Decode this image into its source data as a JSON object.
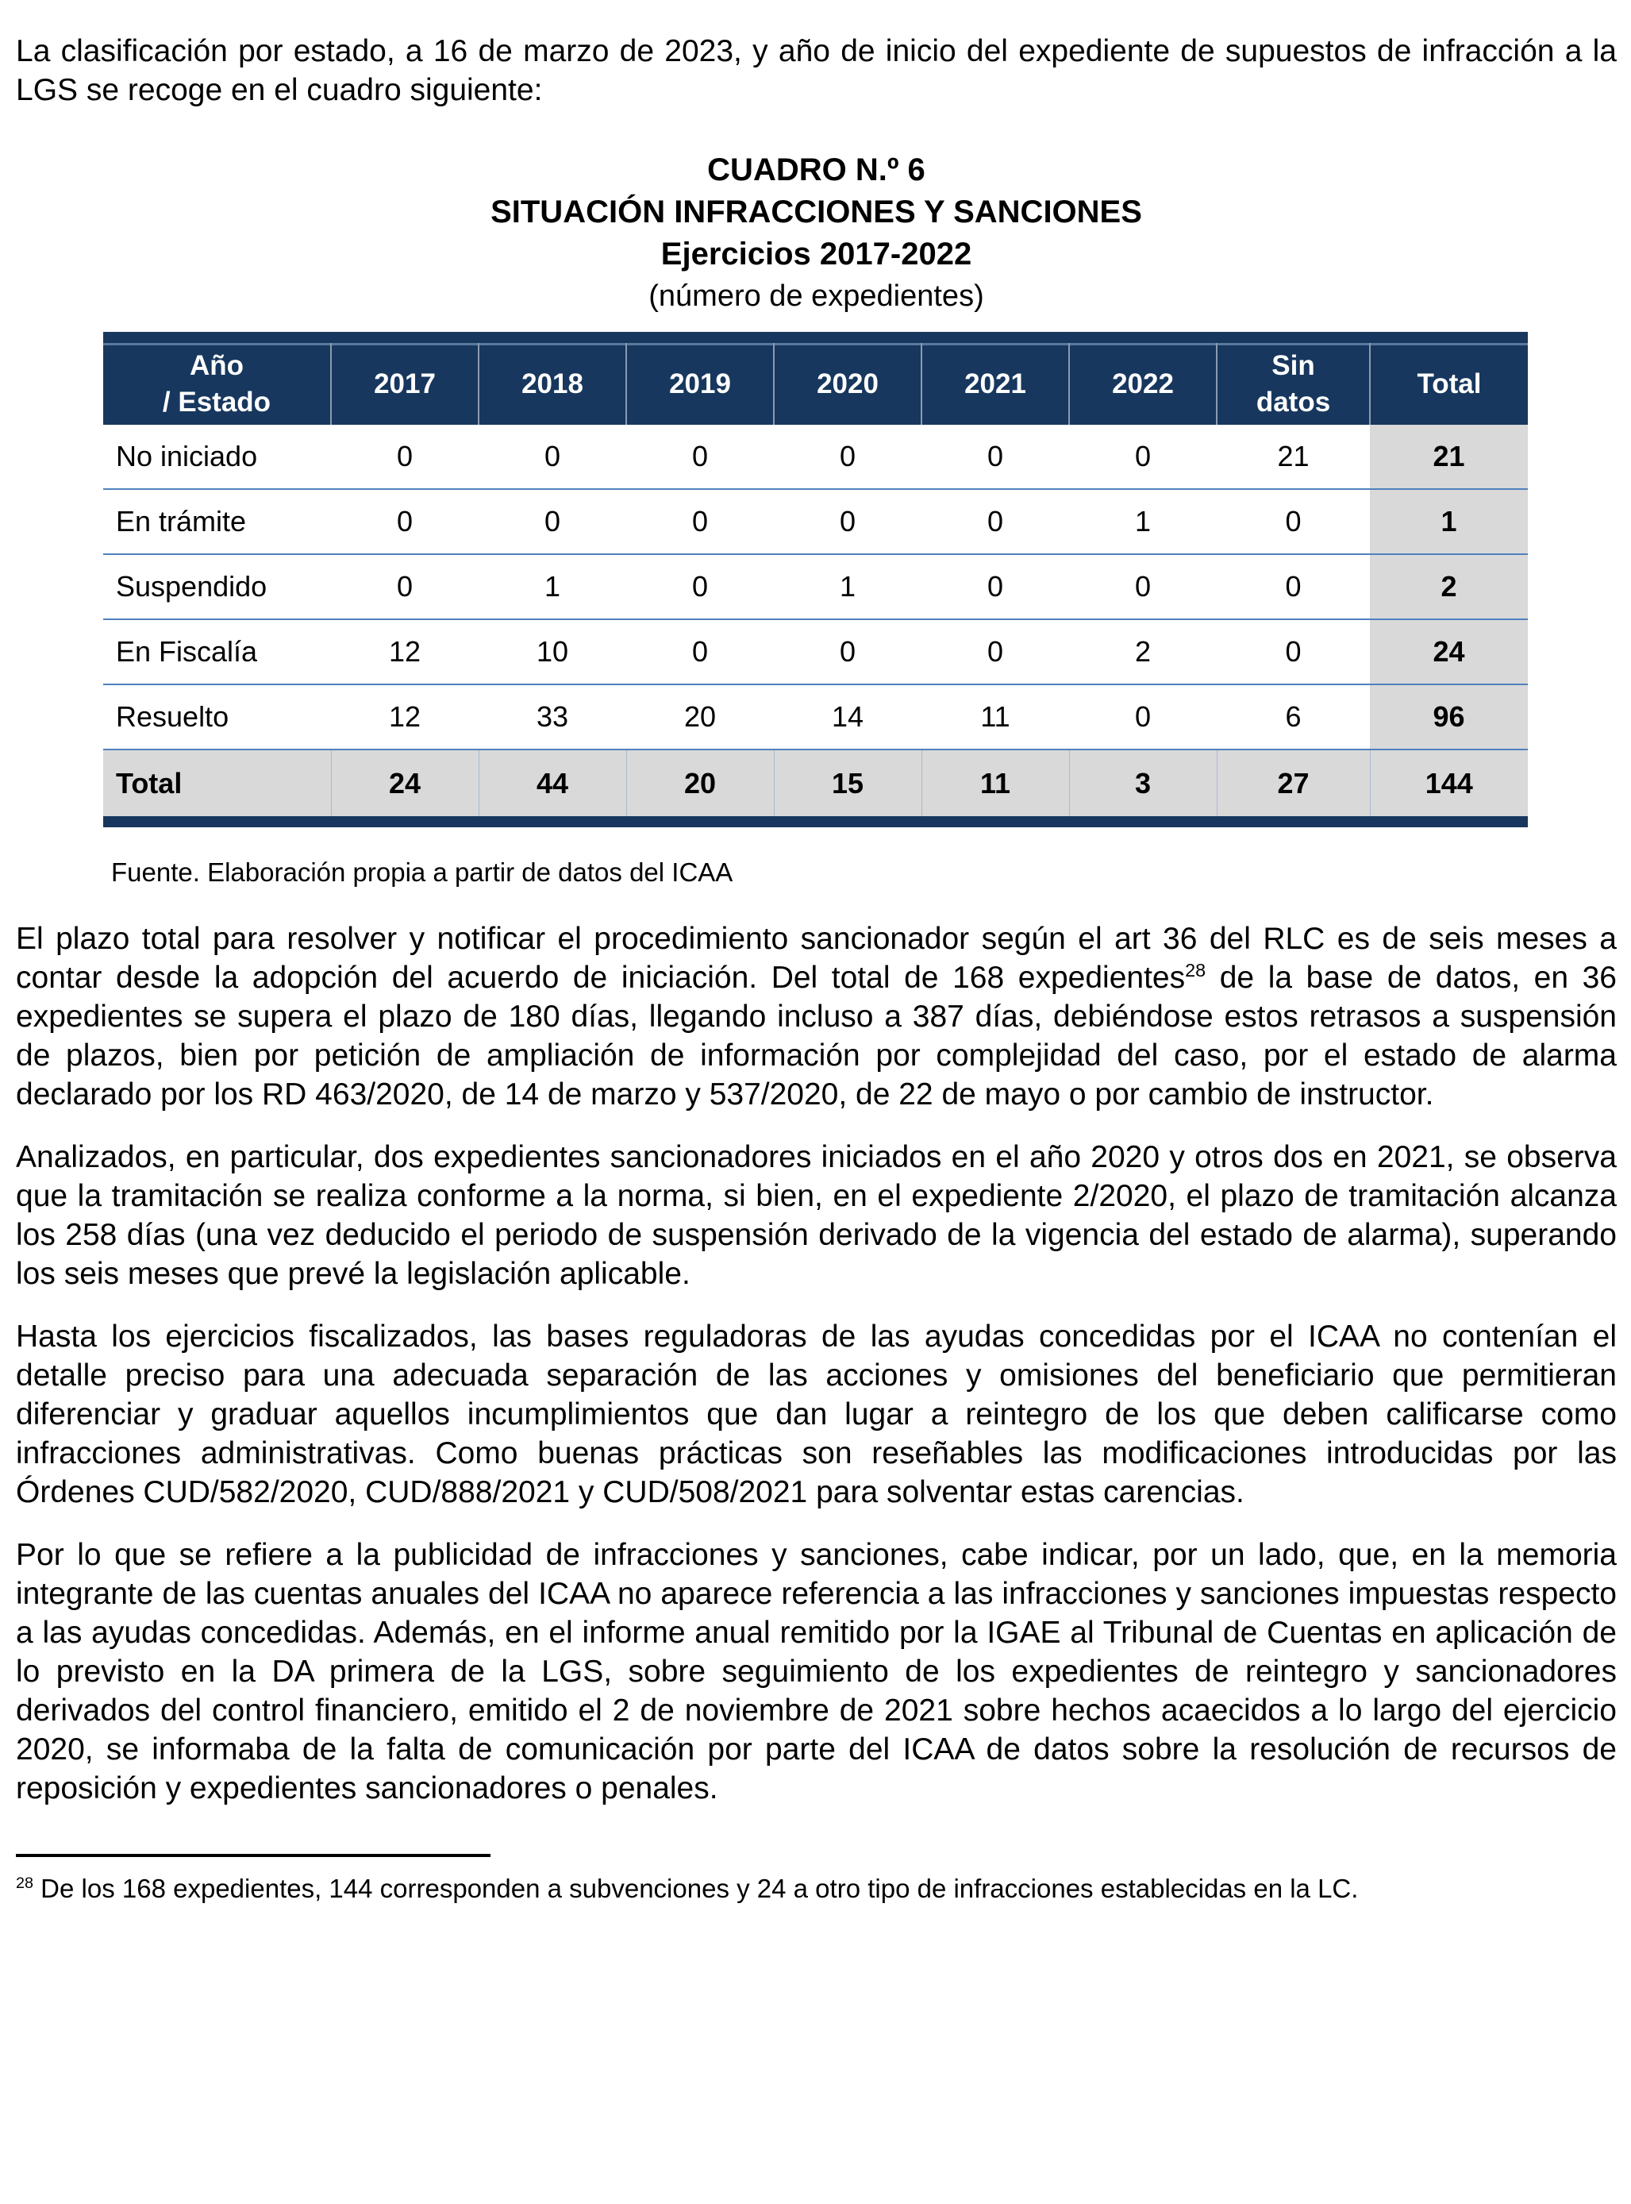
{
  "page": {
    "intro": "La clasificación por estado, a 16 de marzo de 2023, y año de inicio del expediente de supuestos de infracción a la LGS se recoge en el cuadro siguiente:",
    "title": {
      "line1": "CUADRO N.º 6",
      "line2": "SITUACIÓN INFRACCIONES Y SANCIONES",
      "line3": "Ejercicios 2017-2022",
      "line4": "(número de expedientes)"
    },
    "table": {
      "headers": [
        "Año\n/ Estado",
        "2017",
        "2018",
        "2019",
        "2020",
        "2021",
        "2022",
        "Sin\ndatos",
        "Total"
      ],
      "rows": [
        {
          "label": "No iniciado",
          "values": [
            "0",
            "0",
            "0",
            "0",
            "0",
            "0",
            "21",
            "21"
          ]
        },
        {
          "label": "En trámite",
          "values": [
            "0",
            "0",
            "0",
            "0",
            "0",
            "1",
            "0",
            "1"
          ]
        },
        {
          "label": "Suspendido",
          "values": [
            "0",
            "1",
            "0",
            "1",
            "0",
            "0",
            "0",
            "2"
          ]
        },
        {
          "label": "En Fiscalía",
          "values": [
            "12",
            "10",
            "0",
            "0",
            "0",
            "2",
            "0",
            "24"
          ]
        },
        {
          "label": "Resuelto",
          "values": [
            "12",
            "33",
            "20",
            "14",
            "11",
            "0",
            "6",
            "96"
          ]
        },
        {
          "label": "Total",
          "values": [
            "24",
            "44",
            "20",
            "15",
            "11",
            "3",
            "27",
            "144"
          ]
        }
      ]
    },
    "source": "Fuente. Elaboración propia a partir de datos del ICAA",
    "paragraphs": {
      "p1a": "El plazo total para resolver y notificar el procedimiento sancionador según el art 36 del RLC es de seis meses a contar desde la adopción del acuerdo de iniciación. Del total de 168 expedientes",
      "p1sup": "28",
      "p1b": " de la base de datos, en 36 expedientes se supera el plazo de 180 días, llegando incluso a 387 días, debiéndose estos retrasos a suspensión de plazos, bien por petición de ampliación de información por complejidad del caso, por el estado de alarma declarado por los RD 463/2020, de 14 de marzo y 537/2020, de 22 de mayo o por cambio de instructor.",
      "p2": "Analizados, en particular, dos expedientes sancionadores iniciados en el año 2020 y otros dos en 2021, se observa que la tramitación se realiza conforme a la norma, si bien, en el expediente 2/2020, el plazo de tramitación alcanza los 258 días (una vez deducido el periodo de suspensión derivado de la vigencia del estado de alarma), superando los seis meses que prevé la legislación aplicable.",
      "p3": "Hasta los ejercicios fiscalizados, las bases reguladoras de las ayudas concedidas por el ICAA no contenían el detalle preciso para una adecuada separación de las acciones y omisiones del beneficiario que permitieran diferenciar y graduar aquellos incumplimientos que dan lugar a reintegro de los que deben calificarse como infracciones administrativas. Como buenas prácticas son reseñables las modificaciones introducidas por las Órdenes CUD/582/2020, CUD/888/2021 y CUD/508/2021 para solventar estas carencias.",
      "p4": "Por lo que se refiere a la publicidad de infracciones y sanciones, cabe indicar, por un lado, que, en la memoria integrante de las cuentas anuales del ICAA no aparece referencia a las infracciones y sanciones impuestas respecto a las ayudas concedidas. Además, en el informe anual remitido por la IGAE al Tribunal de Cuentas en aplicación de lo previsto en la DA primera de la LGS, sobre seguimiento de los expedientes de reintegro y sancionadores derivados del control financiero, emitido el 2 de noviembre de 2021 sobre hechos acaecidos a lo largo del ejercicio 2020, se informaba de la falta de comunicación por parte del ICAA de datos sobre la resolución de recursos de reposición y expedientes sancionadores o penales."
    },
    "footnote": {
      "marker": "28",
      "text": " De los 168 expedientes, 144 corresponden a subvenciones y 24 a otro tipo de infracciones establecidas en la LC."
    }
  },
  "colors": {
    "header_navy": "#17375E",
    "row_separator_blue": "#4F81BD",
    "total_gray": "#D9D9D9",
    "text": "#000000",
    "header_text": "#FFFFFF"
  }
}
